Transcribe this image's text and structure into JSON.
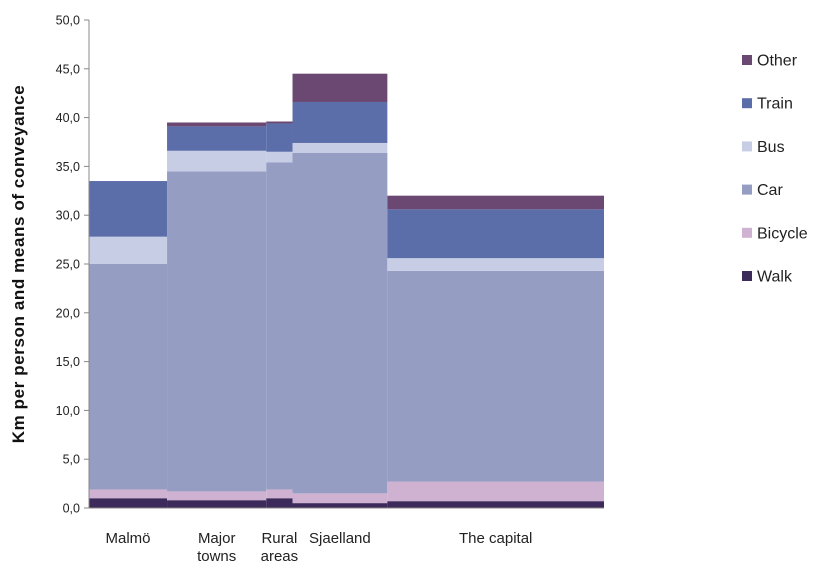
{
  "chart_data": {
    "type": "bar",
    "subtype": "stacked-variable-width (marimekko)",
    "title": "",
    "xlabel": "",
    "ylabel": "Km per person and means of conveyance",
    "ylim": [
      0,
      50
    ],
    "y_ticks": [
      "0,0",
      "5,0",
      "10,0",
      "15,0",
      "20,0",
      "25,0",
      "30,0",
      "35,0",
      "40,0",
      "45,0",
      "50,0"
    ],
    "grid": false,
    "legend_position": "right",
    "categories": [
      "Malmö",
      "Major towns",
      "Rural areas",
      "Sjaelland",
      "The capital"
    ],
    "category_label_lines": [
      [
        "Malmö"
      ],
      [
        "Major",
        "towns"
      ],
      [
        "Rural",
        "areas"
      ],
      [
        "Sjaelland"
      ],
      [
        "The capital"
      ]
    ],
    "category_width_share": [
      10.7,
      13.6,
      3.6,
      13.0,
      29.7
    ],
    "series": [
      {
        "name": "Walk",
        "color": "#3b2a5a",
        "values": [
          1.0,
          0.8,
          1.0,
          0.5,
          0.7
        ]
      },
      {
        "name": "Bicycle",
        "color": "#cfb2d2",
        "values": [
          0.9,
          0.9,
          0.9,
          1.0,
          2.0
        ]
      },
      {
        "name": "Car",
        "color": "#959dc3",
        "values": [
          23.1,
          32.8,
          33.5,
          34.9,
          21.6
        ]
      },
      {
        "name": "Bus",
        "color": "#c6cde4",
        "values": [
          2.8,
          2.1,
          1.1,
          1.0,
          1.3
        ]
      },
      {
        "name": "Train",
        "color": "#5b6eaa",
        "values": [
          5.7,
          2.5,
          2.9,
          4.2,
          5.0
        ]
      },
      {
        "name": "Other",
        "color": "#6a4872",
        "values": [
          0.0,
          0.4,
          0.2,
          2.9,
          1.4
        ]
      }
    ]
  }
}
